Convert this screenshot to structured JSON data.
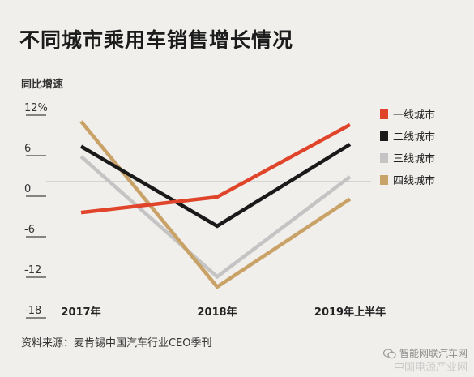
{
  "title": "不同城市乘用车销售增长情况",
  "source": "资料来源：麦肯锡中国汽车行业CEO季刊",
  "watermark": {
    "line1": "智能网联汽车网",
    "line2": "中国电源产业网"
  },
  "colors": {
    "tier1": "#e0452b",
    "tier2": "#1a1a1a",
    "tier3": "#c4c4c4",
    "tier4": "#c9a268",
    "zero_line": "#b9b9b9",
    "grid": "#1a1a1a"
  },
  "chart_data": {
    "type": "line",
    "ylabel": "同比增速",
    "categories": [
      "2017年",
      "2018年",
      "2019年上半年"
    ],
    "yticks": [
      "12%",
      "6",
      "0",
      "-6",
      "-12",
      "-18"
    ],
    "ytick_values": [
      12,
      6,
      0,
      -6,
      -12,
      -18
    ],
    "ylim": [
      -18,
      12
    ],
    "legend_position": "right",
    "series": [
      {
        "name": "一线城市",
        "values": [
          -3.5,
          -1.2,
          9.5
        ]
      },
      {
        "name": "二线城市",
        "values": [
          6.3,
          -5.5,
          6.6
        ]
      },
      {
        "name": "三线城市",
        "values": [
          4.8,
          -13.0,
          1.8
        ]
      },
      {
        "name": "四线城市",
        "values": [
          10.0,
          -14.5,
          -1.5
        ]
      }
    ]
  }
}
